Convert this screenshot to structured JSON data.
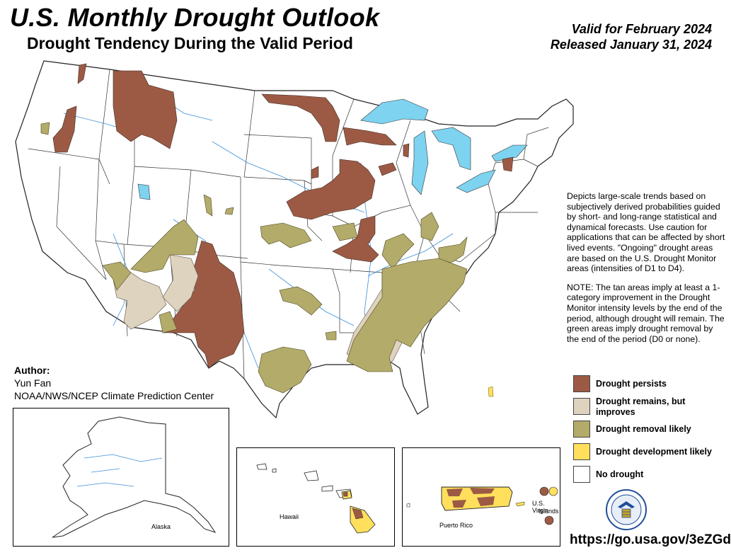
{
  "header": {
    "title": "U.S. Monthly Drought Outlook",
    "subtitle": "Drought Tendency During the Valid Period",
    "valid": "Valid for February 2024",
    "released": "Released January 31, 2024"
  },
  "description": {
    "p1": "Depicts large-scale trends based on subjectively derived probabilities guided by short- and long-range statistical and dynamical forecasts. Use caution for applications that can be affected by short lived events. \"Ongoing\" drought areas are based on the U.S. Drought Monitor areas (intensities of D1 to D4).",
    "p2": "NOTE: The tan areas imply at least a 1-category improvement in the Drought Monitor intensity levels by the end of the period, although drought will remain. The green areas imply drought removal by the end of the period (D0 or none)."
  },
  "author": {
    "label": "Author:",
    "name": "Yun Fan",
    "org": "NOAA/NWS/NCEP Climate Prediction Center"
  },
  "legend": [
    {
      "label": "Drought persists",
      "color": "#9c5a45"
    },
    {
      "label": "Drought remains, but improves",
      "color": "#ded3bf"
    },
    {
      "label": "Drought removal likely",
      "color": "#b3ab6a"
    },
    {
      "label": "Drought development likely",
      "color": "#ffdf5c"
    },
    {
      "label": "No drought",
      "color": "#ffffff"
    }
  ],
  "insets": {
    "alaska": "Alaska",
    "hawaii": "Hawaii",
    "puerto_rico": "Puerto Rico",
    "virgin_islands_1": "U.S. Virgin",
    "virgin_islands_2": "Islands"
  },
  "url": "https://go.usa.gov/3eZGd",
  "colors": {
    "persist": "#9c5a45",
    "improve": "#ded3bf",
    "removal": "#b3ab6a",
    "develop": "#ffdf5c",
    "water": "#7dd3f0",
    "river": "#3a8ed8"
  }
}
